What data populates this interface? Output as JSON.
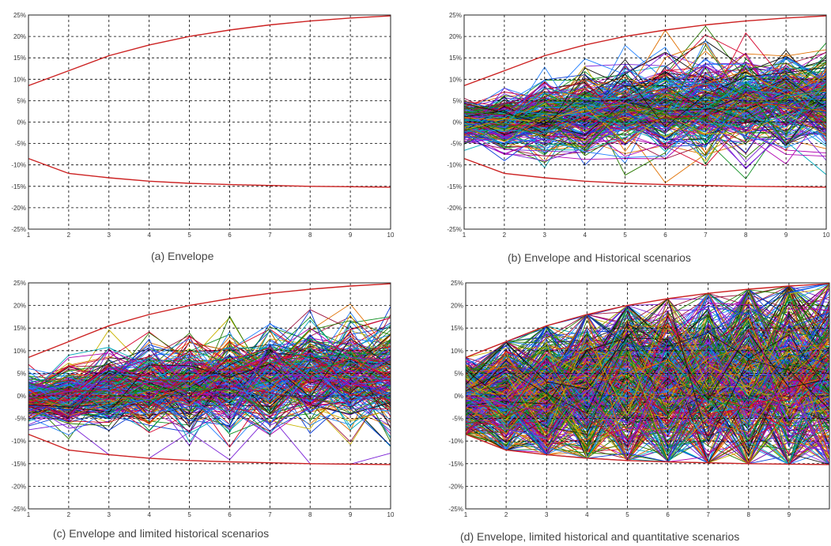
{
  "colors": {
    "envelope": "#cc2222",
    "grid": "#000000",
    "palette": [
      "#d6002a",
      "#0a3cd6",
      "#0d8f1f",
      "#111111",
      "#b000b0",
      "#00a8b8",
      "#c9b300",
      "#7a1fd6",
      "#e07000",
      "#1f7fff",
      "#9b0e3c",
      "#2a7a00"
    ]
  },
  "chart_data": [
    {
      "type": "line",
      "caption": "(a) Envelope",
      "x": [
        1,
        2,
        3,
        4,
        5,
        6,
        7,
        8,
        9,
        10
      ],
      "xticks": [
        "1",
        "2",
        "3",
        "4",
        "5",
        "6",
        "7",
        "8",
        "9",
        "10"
      ],
      "yticks": [
        "25%",
        "20%",
        "15%",
        "10%",
        "5%",
        "0%",
        "-5%",
        "-10%",
        "-15%",
        "-20%",
        "-25%"
      ],
      "ylim": [
        -25,
        25
      ],
      "grid": true,
      "envelope": {
        "upper": [
          8.5,
          12,
          15.5,
          18,
          20,
          21.5,
          22.7,
          23.6,
          24.3,
          24.8
        ],
        "lower": [
          -8.5,
          -12,
          -13,
          -13.8,
          -14.3,
          -14.6,
          -14.8,
          -15,
          -15.1,
          -15.2
        ]
      },
      "scenarios": {
        "count": 0,
        "spread": 0
      }
    },
    {
      "type": "line",
      "caption": "(b) Envelope and Historical scenarios",
      "x": [
        1,
        2,
        3,
        4,
        5,
        6,
        7,
        8,
        9,
        10
      ],
      "xticks": [
        "1",
        "2",
        "3",
        "4",
        "5",
        "6",
        "7",
        "8",
        "9",
        "10"
      ],
      "yticks": [
        "25%",
        "20%",
        "15%",
        "10%",
        "5%",
        "0%",
        "-5%",
        "-10%",
        "-15%",
        "-20%",
        "-25%"
      ],
      "ylim": [
        -25,
        25
      ],
      "grid": true,
      "envelope": {
        "upper": [
          8.5,
          12,
          15.5,
          18,
          20,
          21.5,
          22.7,
          23.6,
          24.3,
          24.8
        ],
        "lower": [
          -8.5,
          -12,
          -13,
          -13.8,
          -14.3,
          -14.6,
          -14.8,
          -15,
          -15.1,
          -15.2
        ]
      },
      "scenarios": {
        "count": 260,
        "spread": 0.42
      }
    },
    {
      "type": "line",
      "caption": "(c) Envelope and limited historical scenarios",
      "x": [
        1,
        2,
        3,
        4,
        5,
        6,
        7,
        8,
        9,
        10
      ],
      "xticks": [
        "1",
        "2",
        "3",
        "4",
        "5",
        "6",
        "7",
        "8",
        "9",
        "10"
      ],
      "yticks": [
        "25%",
        "20%",
        "15%",
        "10%",
        "5%",
        "0%",
        "-5%",
        "-10%",
        "-15%",
        "-20%",
        "-25%"
      ],
      "ylim": [
        -25,
        25
      ],
      "grid": true,
      "envelope": {
        "upper": [
          8.5,
          12,
          15.5,
          18,
          20,
          21.5,
          22.7,
          23.6,
          24.3,
          24.8
        ],
        "lower": [
          -8.5,
          -12,
          -13,
          -13.8,
          -14.3,
          -14.6,
          -14.8,
          -15,
          -15.1,
          -15.2
        ]
      },
      "scenarios": {
        "count": 240,
        "spread": 0.45
      }
    },
    {
      "type": "line",
      "caption": "(d) Envelope, limited historical and quantitative scenarios",
      "x": [
        1,
        2,
        3,
        4,
        5,
        6,
        7,
        8,
        9,
        10
      ],
      "xticks": [
        "1",
        "2",
        "3",
        "4",
        "5",
        "6",
        "7",
        "8",
        "9",
        ""
      ],
      "yticks": [
        "25%",
        "20%",
        "15%",
        "10%",
        "5%",
        "0%",
        "-5%",
        "-10%",
        "-15%",
        "-20%",
        "-25%"
      ],
      "ylim": [
        -25,
        25
      ],
      "grid": true,
      "envelope": {
        "upper": [
          8.5,
          12,
          15.5,
          18,
          20,
          21.5,
          22.7,
          23.6,
          24.3,
          24.8
        ],
        "lower": [
          -8.5,
          -12,
          -13,
          -13.8,
          -14.3,
          -14.6,
          -14.8,
          -15,
          -15.1,
          -15.2
        ]
      },
      "scenarios": {
        "count": 420,
        "spread": 0.85
      }
    }
  ]
}
